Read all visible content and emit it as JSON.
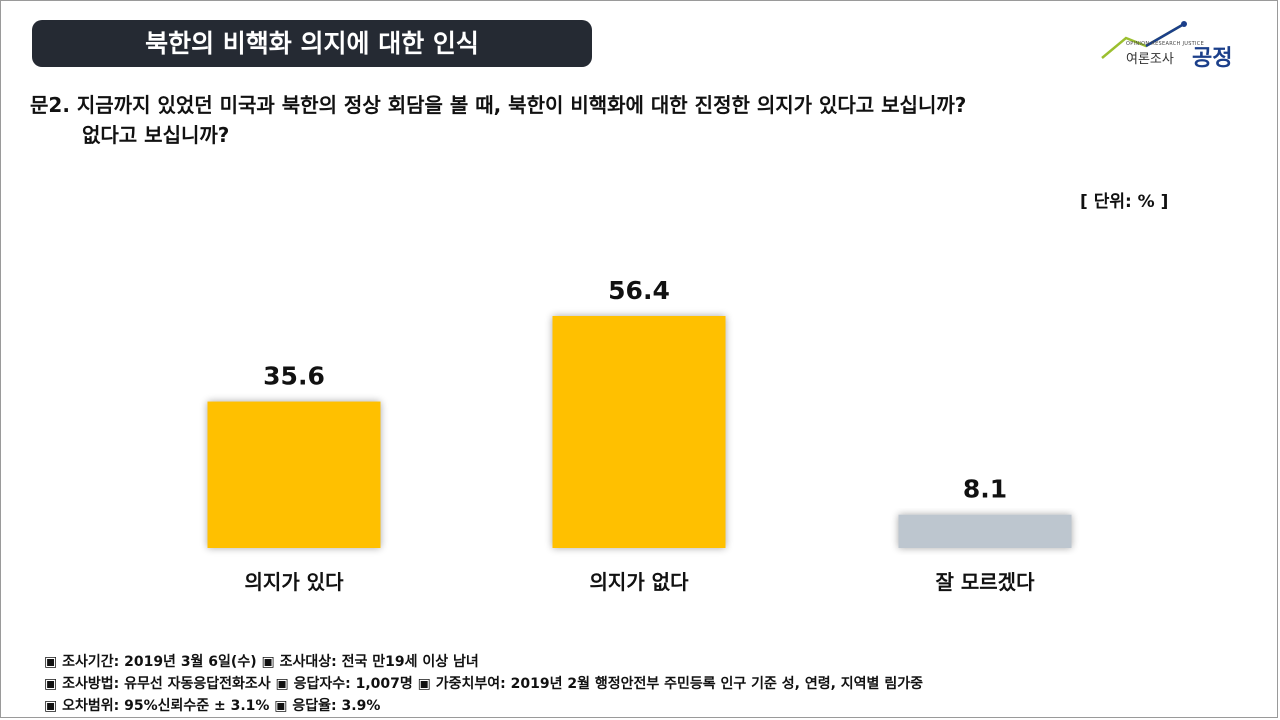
{
  "header": {
    "title": "북한의 비핵화 의지에 대한 인식",
    "logo_text": "여론조사",
    "logo_brand": "공정",
    "logo_tagline": "OPINION RESEARCH JUSTICE"
  },
  "question": {
    "line1": "문2. 지금까지 있었던 미국과 북한의 정상 회담을 볼 때, 북한이 비핵화에 대한 진정한 의지가 있다고 보십니까?",
    "line2": "없다고 보십니까?"
  },
  "unit_label": "[ 단위: % ]",
  "chart_data": {
    "type": "bar",
    "categories": [
      "의지가 있다",
      "의지가 없다",
      "잘 모르겠다"
    ],
    "values": [
      35.6,
      56.4,
      8.1
    ],
    "colors": [
      "#FFC000",
      "#FFC000",
      "#BDC6CF"
    ],
    "title": "",
    "xlabel": "",
    "ylabel": "",
    "ylim": [
      0,
      60
    ],
    "grid": false
  },
  "footer": {
    "line1": "▣ 조사기간: 2019년 3월 6일(수) ▣ 조사대상: 전국 만19세 이상 남녀",
    "line2": "▣ 조사방법: 유무선 자동응답전화조사 ▣ 응답자수: 1,007명 ▣ 가중치부여: 2019년 2월 행정안전부 주민등록 인구 기준 성, 연령, 지역별 림가중",
    "line3": "▣ 오차범위: 95%신뢰수준 ± 3.1% ▣ 응답율: 3.9%"
  }
}
